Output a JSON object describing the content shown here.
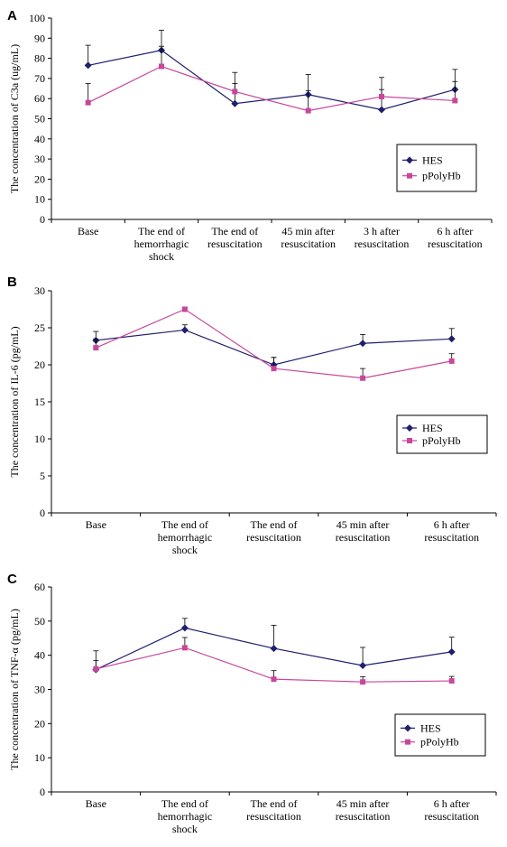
{
  "chart_data": [
    {
      "type": "line",
      "panel_label": "A",
      "ylabel": "The concentration of C3a (ug/mL)",
      "ylim": [
        0,
        100
      ],
      "yticks": [
        0,
        10,
        20,
        30,
        40,
        50,
        60,
        70,
        80,
        90,
        100
      ],
      "categories": [
        [
          "Base"
        ],
        [
          "The end of",
          "hemorrhagic",
          "shock"
        ],
        [
          "The end of",
          "resuscitation"
        ],
        [
          "45 min after",
          "resuscitation"
        ],
        [
          "3 h after",
          "resuscitation"
        ],
        [
          "6 h after",
          "resuscitation"
        ]
      ],
      "legend": {
        "entries": [
          "HES",
          "pPolyHb"
        ],
        "placement": "right"
      },
      "series": [
        {
          "name": "HES",
          "color": "#1f1f6e",
          "marker": "diamond",
          "values": [
            76.5,
            84,
            57.5,
            62,
            54.5,
            64.5
          ],
          "error_up": [
            10,
            10,
            10,
            10,
            10,
            10
          ]
        },
        {
          "name": "pPolyHb",
          "color": "#c8479b",
          "marker": "square",
          "values": [
            58,
            76,
            63.5,
            54,
            61,
            59
          ],
          "error_up": [
            9.5,
            10,
            9.5,
            10,
            9.5,
            9.5
          ]
        }
      ]
    },
    {
      "type": "line",
      "panel_label": "B",
      "ylabel": "The concentration of IL-6 (pg/mL)",
      "ylim": [
        0,
        30
      ],
      "yticks": [
        0,
        5,
        10,
        15,
        20,
        25,
        30
      ],
      "categories": [
        [
          "Base"
        ],
        [
          "The end of",
          "hemorrhagic",
          "shock"
        ],
        [
          "The end of",
          "resuscitation"
        ],
        [
          "45 min after",
          "resuscitation"
        ],
        [
          "6 h after",
          "resuscitation"
        ]
      ],
      "legend": {
        "entries": [
          "HES",
          "pPolyHb"
        ],
        "placement": "right"
      },
      "series": [
        {
          "name": "HES",
          "color": "#1f1f6e",
          "marker": "diamond",
          "values": [
            23.3,
            24.7,
            20,
            22.9,
            23.5
          ],
          "error_up": [
            1.2,
            0.7,
            1,
            1.2,
            1.4
          ]
        },
        {
          "name": "pPolyHb",
          "color": "#c8479b",
          "marker": "square",
          "values": [
            22.3,
            27.5,
            19.5,
            18.2,
            20.5
          ],
          "error_up": [
            1.2,
            0.3,
            1.5,
            1.3,
            1
          ]
        }
      ]
    },
    {
      "type": "line",
      "panel_label": "C",
      "ylabel": "The concentration of TNF-α (pg/mL)",
      "ylim": [
        0,
        60
      ],
      "yticks": [
        0,
        10,
        20,
        30,
        40,
        50,
        60
      ],
      "categories": [
        [
          "Base"
        ],
        [
          "The end of",
          "hemorrhagic",
          "shock"
        ],
        [
          "The end of",
          "resuscitation"
        ],
        [
          "45 min after",
          "resuscitation"
        ],
        [
          "6 h after",
          "resuscitation"
        ]
      ],
      "legend": {
        "entries": [
          "HES",
          "pPolyHb"
        ],
        "placement": "right"
      },
      "series": [
        {
          "name": "HES",
          "color": "#1f1f6e",
          "marker": "diamond",
          "values": [
            35.8,
            48,
            42,
            37,
            41
          ],
          "error_up": [
            5.5,
            2.8,
            6.8,
            5.3,
            4.3
          ]
        },
        {
          "name": "pPolyHb",
          "color": "#c8479b",
          "marker": "square",
          "values": [
            36,
            42.2,
            33,
            32.2,
            32.5
          ],
          "error_up": [
            2.5,
            3,
            2.5,
            1.5,
            1.3
          ]
        }
      ]
    }
  ]
}
